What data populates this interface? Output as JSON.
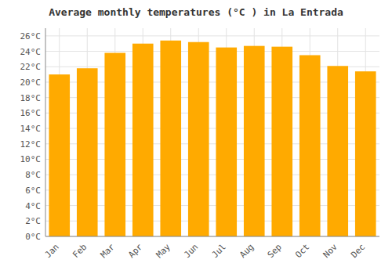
{
  "chart_data": {
    "type": "bar",
    "title": "Average monthly temperatures (°C ) in La Entrada",
    "categories": [
      "Jan",
      "Feb",
      "Mar",
      "Apr",
      "May",
      "Jun",
      "Jul",
      "Aug",
      "Sep",
      "Oct",
      "Nov",
      "Dec"
    ],
    "values": [
      21.0,
      21.8,
      23.8,
      25.0,
      25.4,
      25.2,
      24.5,
      24.7,
      24.6,
      23.5,
      22.1,
      21.4
    ],
    "color": "#FFAA00",
    "ylim": [
      0,
      27
    ],
    "yticks": [
      {
        "value": 0,
        "label": "0°C"
      },
      {
        "value": 2,
        "label": "2°C"
      },
      {
        "value": 4,
        "label": "4°C"
      },
      {
        "value": 6,
        "label": "6°C"
      },
      {
        "value": 8,
        "label": "8°C"
      },
      {
        "value": 10,
        "label": "10°C"
      },
      {
        "value": 12,
        "label": "12°C"
      },
      {
        "value": 14,
        "label": "14°C"
      },
      {
        "value": 16,
        "label": "16°C"
      },
      {
        "value": 18,
        "label": "18°C"
      },
      {
        "value": 20,
        "label": "20°C"
      },
      {
        "value": 22,
        "label": "22°C"
      },
      {
        "value": 24,
        "label": "24°C"
      },
      {
        "value": 26,
        "label": "26°C"
      }
    ],
    "grid": true
  }
}
